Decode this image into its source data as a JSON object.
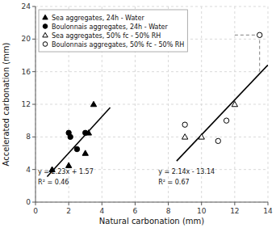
{
  "chart_data": {
    "type": "scatter",
    "x_label": "Natural carbonation (mm)",
    "y_label": "Accelerated carbonation (mm)",
    "xlim": [
      0,
      14
    ],
    "ylim": [
      0,
      24
    ],
    "xticks": [
      0,
      2,
      4,
      6,
      8,
      10,
      12,
      14
    ],
    "yticks": [
      0,
      4,
      8,
      12,
      16,
      20,
      24
    ],
    "grid": true,
    "legend": "upper left",
    "series": [
      {
        "name": "Sea aggregates, 24h - Water",
        "type": "scatter",
        "marker": "triangle",
        "color": "black",
        "x": [
          1.0,
          2.0,
          3.0,
          3.2,
          3.5
        ],
        "values": [
          4.0,
          4.5,
          6.0,
          8.5,
          12.0
        ]
      },
      {
        "name": "Boulonnais aggregates, 24h - Water",
        "type": "scatter",
        "marker": "circle",
        "color": "black",
        "x": [
          2.0,
          2.1,
          2.5,
          3.0
        ],
        "values": [
          8.5,
          8.0,
          6.5,
          8.5
        ]
      },
      {
        "name": "Sea aggregates, 50% fc - 50% RH",
        "type": "scatter",
        "marker": "triangle-open",
        "color": "black",
        "x": [
          9.0,
          10.0,
          12.0
        ],
        "values": [
          8.0,
          8.0,
          12.0
        ]
      },
      {
        "name": "Boulonnais aggregates, 50% fc - 50% RH",
        "type": "scatter",
        "marker": "circle-open",
        "color": "black",
        "x": [
          9.0,
          11.0,
          11.5,
          13.5
        ],
        "values": [
          9.5,
          7.5,
          10.0,
          20.5
        ]
      },
      {
        "type": "line",
        "line_style": "solid",
        "color": "black",
        "x": [
          0.7,
          4.5
        ],
        "values": [
          3.131,
          11.605
        ]
      },
      {
        "type": "line",
        "line_style": "solid",
        "color": "black",
        "x": [
          8.5,
          14.0
        ],
        "values": [
          5.05,
          16.82
        ]
      },
      {
        "type": "line",
        "line_style": "dashed",
        "color": "gray",
        "x": [
          13.5,
          13.5
        ],
        "values": [
          16,
          20.5
        ]
      },
      {
        "type": "line",
        "line_style": "dashed",
        "color": "gray",
        "x": [
          12,
          13.5
        ],
        "values": [
          20.5,
          20.5
        ]
      }
    ],
    "annotations": [
      {
        "text": "y = 2.23x + 1.57",
        "x": 0.15,
        "y": 3.5
      },
      {
        "text": "R² = 0.46",
        "x": 0.15,
        "y": 2.2
      },
      {
        "text": "y = 2.14x - 13.14",
        "x": 7.4,
        "y": 3.5
      },
      {
        "text": "R² = 0.67",
        "x": 7.4,
        "y": 2.2
      }
    ]
  }
}
